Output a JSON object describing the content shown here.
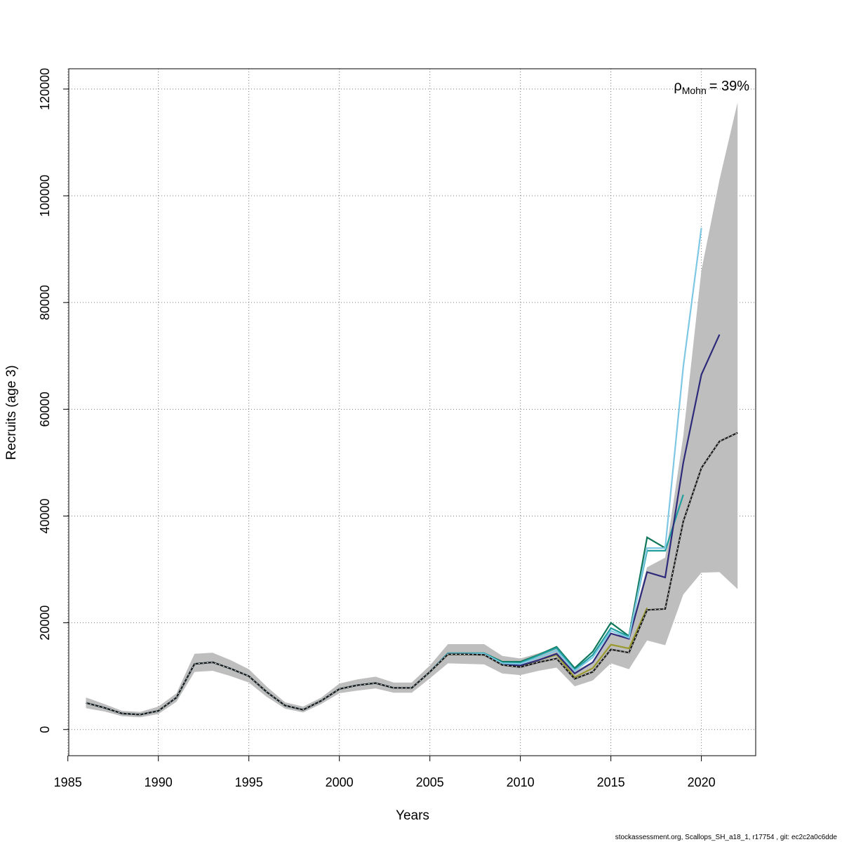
{
  "chart_data": {
    "type": "line",
    "xlabel": "Years",
    "ylabel": "Recruits (age 3)",
    "xlim": [
      1985,
      2023
    ],
    "ylim": [
      -5000,
      124000
    ],
    "x_ticks": [
      1985,
      1990,
      1995,
      2000,
      2005,
      2010,
      2015,
      2020
    ],
    "y_ticks": [
      0,
      20000,
      40000,
      60000,
      80000,
      100000,
      120000
    ],
    "x_tick_labels": [
      "1985",
      "1990",
      "1995",
      "2000",
      "2005",
      "2010",
      "2015",
      "2020"
    ],
    "y_tick_labels": [
      "0",
      "20000",
      "40000",
      "60000",
      "80000",
      "100000",
      "120000"
    ],
    "grid": true,
    "annotation": {
      "rho": "ρ",
      "subscript": "Mohn",
      "value": "= 39%"
    },
    "footer": "stockassessment.org, Scallops_SH_a18_1, r17754 , git: ec2c2a0c6dde",
    "band": {
      "color": "#bebebe",
      "x": [
        1986,
        1987,
        1988,
        1989,
        1990,
        1991,
        1992,
        1993,
        1994,
        1995,
        1996,
        1997,
        1998,
        1999,
        2000,
        2001,
        2002,
        2003,
        2004,
        2005,
        2006,
        2007,
        2008,
        2009,
        2010,
        2011,
        2012,
        2013,
        2014,
        2015,
        2016,
        2017,
        2018,
        2019,
        2020,
        2021,
        2022
      ],
      "lower": [
        4000,
        3400,
        2500,
        2300,
        2900,
        5200,
        10800,
        11000,
        10000,
        8800,
        6100,
        3900,
        3200,
        4800,
        6800,
        7300,
        7700,
        6900,
        6900,
        9600,
        12400,
        12300,
        12200,
        10500,
        10200,
        11000,
        11600,
        8100,
        9200,
        12400,
        11300,
        16700,
        15800,
        25300,
        29400,
        29500,
        26300
      ],
      "upper": [
        6000,
        4800,
        3500,
        3300,
        4300,
        6800,
        14200,
        14400,
        13000,
        11300,
        8000,
        5100,
        4300,
        6000,
        8600,
        9400,
        9900,
        8800,
        8800,
        12000,
        16000,
        16000,
        16000,
        13800,
        13300,
        14300,
        15400,
        11000,
        12700,
        17800,
        17700,
        30400,
        32200,
        55000,
        86000,
        103000,
        117500
      ]
    },
    "series": [
      {
        "color": "#1a1a1a",
        "dashed": true,
        "x": [
          1986,
          1987,
          1988,
          1989,
          1990,
          1991,
          1992,
          1993,
          1994,
          1995,
          1996,
          1997,
          1998,
          1999,
          2000,
          2001,
          2002,
          2003,
          2004,
          2005,
          2006,
          2007,
          2008,
          2009,
          2010,
          2011,
          2012,
          2013,
          2014,
          2015,
          2016,
          2017,
          2018,
          2019,
          2020,
          2021,
          2022
        ],
        "values": [
          5000,
          4100,
          3000,
          2800,
          3500,
          6000,
          12300,
          12600,
          11400,
          10000,
          7000,
          4500,
          3700,
          5400,
          7600,
          8300,
          8700,
          7800,
          7800,
          10800,
          14100,
          14100,
          14000,
          12100,
          11700,
          12600,
          13300,
          9500,
          10800,
          15000,
          14400,
          22400,
          22600,
          39000,
          49000,
          54000,
          55600
        ]
      },
      {
        "color": "#9a9a2e",
        "dashed": false,
        "x": [
          1986,
          1987,
          1988,
          1989,
          1990,
          1991,
          1992,
          1993,
          1994,
          1995,
          1996,
          1997,
          1998,
          1999,
          2000,
          2001,
          2002,
          2003,
          2004,
          2005,
          2006,
          2007,
          2008,
          2009,
          2010,
          2011,
          2012,
          2013,
          2014,
          2015,
          2016,
          2017
        ],
        "values": [
          5000,
          4100,
          3000,
          2800,
          3500,
          6000,
          12300,
          12600,
          11400,
          10000,
          7000,
          4500,
          3700,
          5400,
          7600,
          8300,
          8700,
          7800,
          7800,
          10800,
          14100,
          14100,
          14000,
          12200,
          11900,
          13000,
          14000,
          9800,
          11500,
          15900,
          15200,
          22800
        ]
      },
      {
        "color": "#11775a",
        "dashed": false,
        "x": [
          1986,
          1987,
          1988,
          1989,
          1990,
          1991,
          1992,
          1993,
          1994,
          1995,
          1996,
          1997,
          1998,
          1999,
          2000,
          2001,
          2002,
          2003,
          2004,
          2005,
          2006,
          2007,
          2008,
          2009,
          2010,
          2011,
          2012,
          2013,
          2014,
          2015,
          2016,
          2017,
          2018
        ],
        "values": [
          5000,
          4100,
          3000,
          2800,
          3500,
          6000,
          12300,
          12600,
          11400,
          10000,
          7000,
          4500,
          3700,
          5400,
          7600,
          8300,
          8700,
          7800,
          7800,
          10800,
          14300,
          14300,
          14300,
          12700,
          12700,
          14000,
          15500,
          11500,
          14600,
          20000,
          17500,
          36000,
          34000
        ]
      },
      {
        "color": "#1f9f9f",
        "dashed": false,
        "x": [
          1986,
          1987,
          1988,
          1989,
          1990,
          1991,
          1992,
          1993,
          1994,
          1995,
          1996,
          1997,
          1998,
          1999,
          2000,
          2001,
          2002,
          2003,
          2004,
          2005,
          2006,
          2007,
          2008,
          2009,
          2010,
          2011,
          2012,
          2013,
          2014,
          2015,
          2016,
          2017,
          2018,
          2019
        ],
        "values": [
          5000,
          4100,
          3000,
          2800,
          3500,
          6000,
          12300,
          12600,
          11400,
          10000,
          7000,
          4500,
          3700,
          5400,
          7600,
          8300,
          8700,
          7800,
          7800,
          10800,
          14300,
          14300,
          14300,
          12500,
          12500,
          13900,
          15300,
          11200,
          14000,
          19000,
          17400,
          33500,
          33500,
          44000
        ]
      },
      {
        "color": "#2e2a7a",
        "dashed": false,
        "x": [
          1986,
          1987,
          1988,
          1989,
          1990,
          1991,
          1992,
          1993,
          1994,
          1995,
          1996,
          1997,
          1998,
          1999,
          2000,
          2001,
          2002,
          2003,
          2004,
          2005,
          2006,
          2007,
          2008,
          2009,
          2010,
          2011,
          2012,
          2013,
          2014,
          2015,
          2016,
          2017,
          2018,
          2019,
          2020,
          2021
        ],
        "values": [
          5000,
          4100,
          3000,
          2800,
          3500,
          6000,
          12300,
          12600,
          11400,
          10000,
          7000,
          4500,
          3700,
          5400,
          7600,
          8300,
          8700,
          7800,
          7800,
          10800,
          14200,
          14200,
          14100,
          12300,
          12000,
          13000,
          14200,
          10500,
          12600,
          18000,
          17000,
          29500,
          28500,
          50000,
          66500,
          74000
        ]
      },
      {
        "color": "#7ec8e3",
        "dashed": false,
        "x": [
          1986,
          1987,
          1988,
          1989,
          1990,
          1991,
          1992,
          1993,
          1994,
          1995,
          1996,
          1997,
          1998,
          1999,
          2000,
          2001,
          2002,
          2003,
          2004,
          2005,
          2006,
          2007,
          2008,
          2009,
          2010,
          2011,
          2012,
          2013,
          2014,
          2015,
          2016,
          2017,
          2018,
          2019,
          2020
        ],
        "values": [
          5000,
          4100,
          3000,
          2800,
          3500,
          6000,
          12300,
          12600,
          11400,
          10000,
          7000,
          4500,
          3700,
          5400,
          7600,
          8300,
          8700,
          7800,
          7800,
          10800,
          14200,
          14200,
          14200,
          12400,
          12300,
          13500,
          14800,
          11000,
          13500,
          18500,
          17200,
          34000,
          34000,
          68000,
          94000
        ]
      }
    ]
  }
}
